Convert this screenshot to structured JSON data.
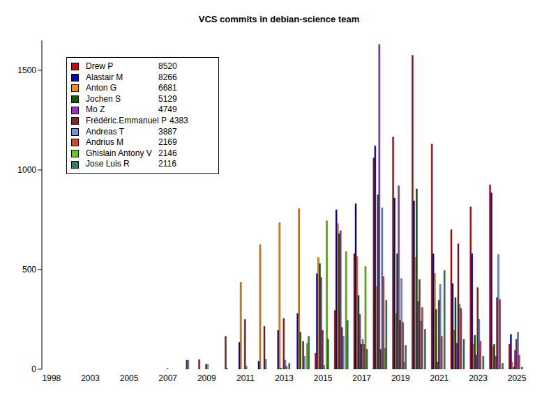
{
  "chart_data": {
    "type": "bar",
    "title": "VCS commits in debian-science team",
    "categories": [
      "1998",
      null,
      "2003",
      null,
      "2005",
      null,
      "2007",
      null,
      "2009",
      null,
      "2011",
      null,
      "2013",
      null,
      "2015",
      null,
      "2017",
      null,
      "2019",
      null,
      "2021",
      null,
      "2023",
      null,
      "2025"
    ],
    "ylim": [
      0,
      1650
    ],
    "yticks": [
      0,
      500,
      1000,
      1500
    ],
    "grid": false,
    "legend": "upper left",
    "series": [
      {
        "name": "Drew P",
        "total": 8520,
        "color": "#dd0000",
        "values": [
          0,
          0,
          0,
          0,
          0,
          0,
          0,
          0,
          48,
          0,
          0,
          0,
          0,
          0,
          80,
          295,
          580,
          1060,
          1165,
          1575,
          1130,
          700,
          815,
          925,
          125
        ]
      },
      {
        "name": "Alastair M",
        "total": 8266,
        "color": "#0000cc",
        "values": [
          0,
          0,
          0,
          0,
          0,
          0,
          0,
          0,
          0,
          0,
          135,
          40,
          195,
          280,
          480,
          800,
          830,
          1120,
          860,
          845,
          580,
          430,
          580,
          885,
          175
        ]
      },
      {
        "name": "Anton G",
        "total": 6681,
        "color": "#ff8c00",
        "values": [
          0,
          0,
          0,
          0,
          0,
          0,
          0,
          0,
          0,
          0,
          435,
          625,
          735,
          805,
          560,
          730,
          565,
          415,
          280,
          560,
          480,
          195,
          125,
          115,
          35
        ]
      },
      {
        "name": "Jochen S",
        "total": 5129,
        "color": "#006400",
        "values": [
          0,
          0,
          0,
          0,
          0,
          0,
          0,
          0,
          0,
          0,
          0,
          0,
          5,
          185,
          530,
          680,
          370,
          875,
          580,
          905,
          300,
          360,
          170,
          125,
          10
        ]
      },
      {
        "name": "Mo Z",
        "total": 4749,
        "color": "#9932cc",
        "values": [
          0,
          0,
          0,
          0,
          0,
          0,
          0,
          0,
          0,
          0,
          0,
          0,
          0,
          0,
          460,
          695,
          275,
          1630,
          920,
          340,
          35,
          130,
          70,
          65,
          95
        ]
      },
      {
        "name": "Frédéric.Emmanuel P",
        "total": 4383,
        "color": "#8b2323",
        "values": [
          0,
          0,
          0,
          0,
          0,
          0,
          3,
          45,
          25,
          165,
          250,
          215,
          255,
          140,
          195,
          210,
          125,
          100,
          245,
          450,
          345,
          630,
          410,
          360,
          150
        ]
      },
      {
        "name": "Andreas T",
        "total": 3887,
        "color": "#6495ed",
        "values": [
          0,
          0,
          0,
          0,
          0,
          0,
          0,
          45,
          25,
          5,
          15,
          50,
          45,
          65,
          20,
          165,
          150,
          810,
          455,
          240,
          425,
          325,
          250,
          575,
          185
        ]
      },
      {
        "name": "Andrius M",
        "total": 2169,
        "color": "#e03c31",
        "values": [
          0,
          0,
          0,
          0,
          0,
          0,
          0,
          0,
          0,
          0,
          0,
          0,
          15,
          0,
          0,
          0,
          125,
          465,
          235,
          310,
          165,
          305,
          140,
          350,
          70
        ]
      },
      {
        "name": "Ghislain Antony V",
        "total": 2146,
        "color": "#66cd00",
        "values": [
          0,
          0,
          0,
          0,
          0,
          0,
          0,
          0,
          0,
          0,
          0,
          0,
          0,
          130,
          745,
          590,
          515,
          105,
          35,
          0,
          0,
          0,
          0,
          0,
          0
        ]
      },
      {
        "name": "Jose Luis R",
        "total": 2116,
        "color": "#2f7f6f",
        "values": [
          0,
          0,
          0,
          0,
          0,
          0,
          0,
          0,
          0,
          0,
          0,
          0,
          30,
          165,
          150,
          245,
          100,
          345,
          120,
          200,
          495,
          150,
          65,
          30,
          10
        ]
      }
    ]
  }
}
